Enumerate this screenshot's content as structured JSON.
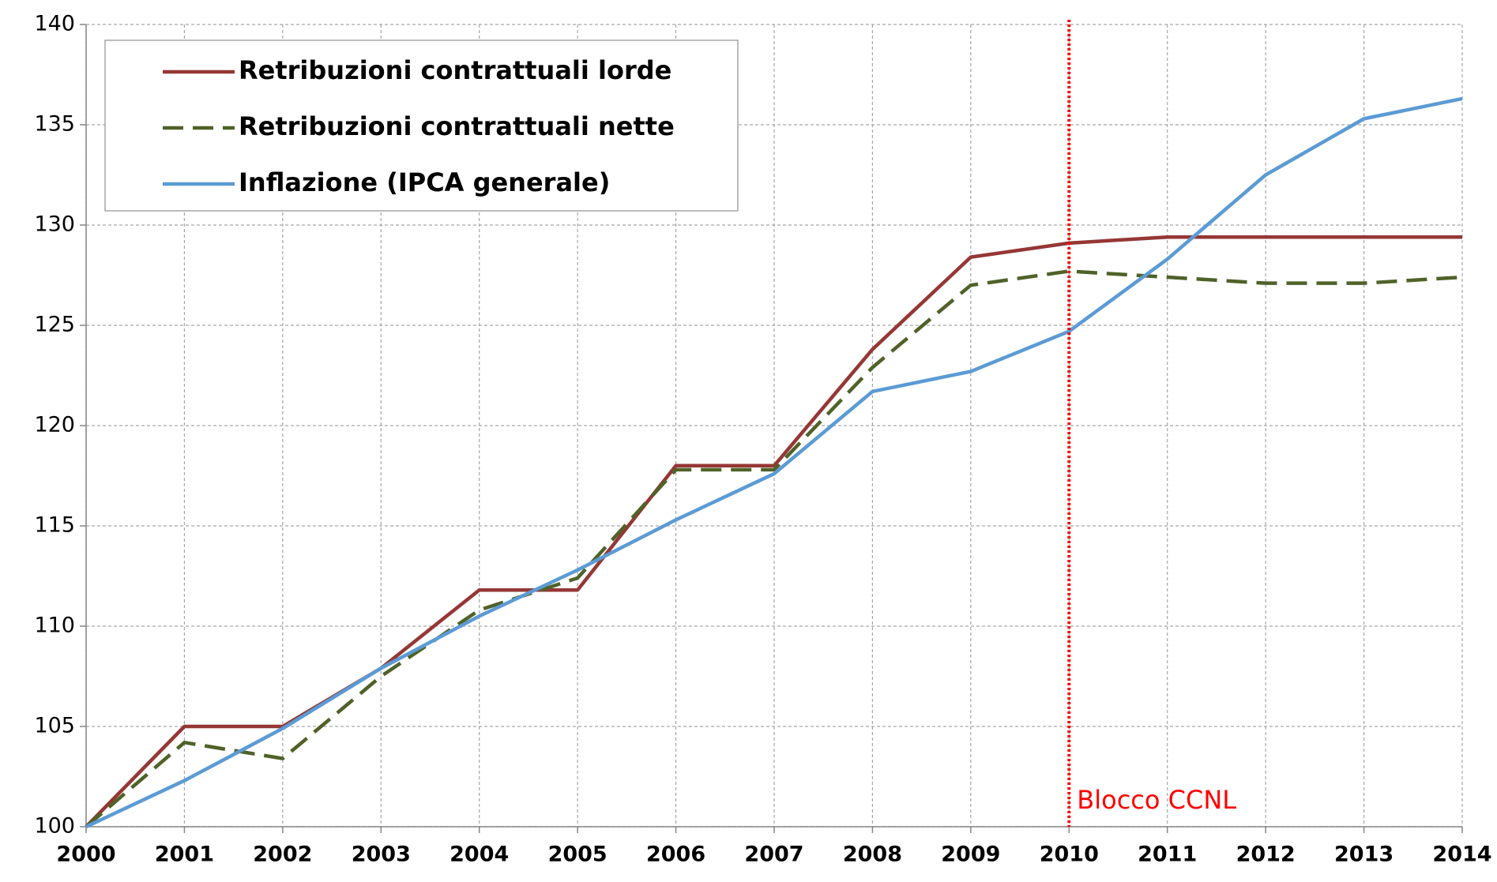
{
  "chart_data": {
    "type": "line",
    "x": [
      2000,
      2001,
      2002,
      2003,
      2004,
      2005,
      2006,
      2007,
      2008,
      2009,
      2010,
      2011,
      2012,
      2013,
      2014
    ],
    "series": [
      {
        "name": "Retribuzioni contrattuali lorde",
        "color": "#953735",
        "dash": false,
        "values": [
          100,
          105,
          105,
          107.9,
          111.8,
          111.8,
          118,
          118,
          123.8,
          128.4,
          129.1,
          129.4,
          129.4,
          129.4,
          129.4
        ]
      },
      {
        "name": "Retribuzioni contrattuali nette",
        "color": "#4f6228",
        "dash": true,
        "values": [
          100,
          104.2,
          103.4,
          107.5,
          110.8,
          112.4,
          117.8,
          117.8,
          122.9,
          127,
          127.7,
          127.4,
          127.1,
          127.1,
          127.4
        ]
      },
      {
        "name": "Inflazione (IPCA generale)",
        "color": "#5b9bd5",
        "dash": false,
        "values": [
          100,
          102.3,
          104.9,
          107.9,
          110.5,
          112.8,
          115.3,
          117.6,
          121.7,
          122.7,
          124.7,
          128.3,
          132.5,
          135.3,
          136.3
        ]
      }
    ],
    "xlim": [
      2000,
      2014
    ],
    "xticks": [
      2000,
      2001,
      2002,
      2003,
      2004,
      2005,
      2006,
      2007,
      2008,
      2009,
      2010,
      2011,
      2012,
      2013,
      2014
    ],
    "ylim": [
      100,
      140
    ],
    "yticks": [
      100,
      105,
      110,
      115,
      120,
      125,
      130,
      135,
      140
    ],
    "grid": true,
    "legend": "upper left",
    "vline": {
      "x": 2010,
      "label": "Blocco CCNL",
      "color": "#ff0000"
    }
  }
}
